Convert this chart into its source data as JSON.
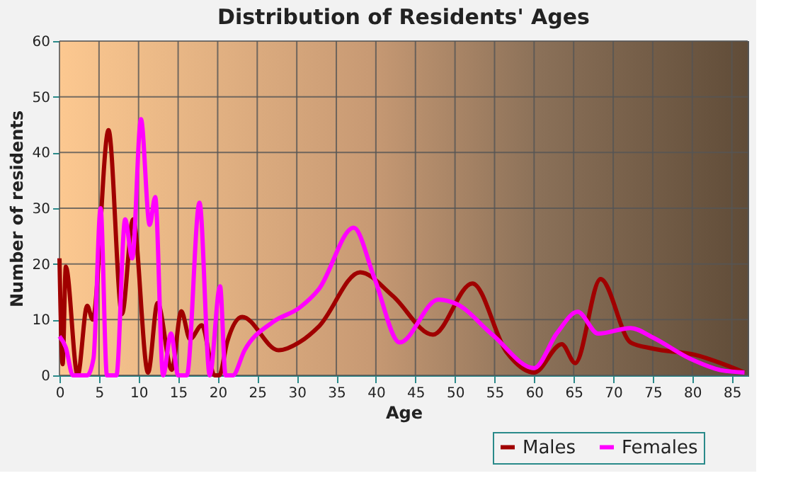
{
  "chart_data": {
    "type": "line",
    "title": "Distribution of Residents' Ages",
    "xlabel": "Age",
    "ylabel": "Number of residents",
    "xlim": [
      0,
      87
    ],
    "xticks": [
      0,
      5,
      10,
      15,
      20,
      25,
      30,
      35,
      40,
      45,
      50,
      55,
      60,
      65,
      70,
      75,
      80,
      85
    ],
    "ylim": [
      0,
      60
    ],
    "yticks": [
      0,
      10,
      20,
      30,
      40,
      50,
      60
    ],
    "grid": true,
    "legend": "bottom",
    "line_style": "solid",
    "series": [
      {
        "name": "Males",
        "color": "#a00000",
        "x": [
          0,
          0.4,
          0.8,
          2.3,
          3.5,
          4.2,
          6.2,
          7.9,
          9.3,
          11.2,
          12.4,
          14.2,
          15.4,
          16.5,
          18,
          19.6,
          20.2,
          21.2,
          23.1,
          27.7,
          30.4,
          32.8,
          38,
          42.1,
          47.2,
          52.2,
          56.5,
          60,
          63.5,
          65.2,
          68.4,
          72.2,
          75,
          80.3,
          86.6
        ],
        "values": [
          21,
          2,
          19.5,
          0,
          12.5,
          10,
          44,
          11,
          28,
          0.5,
          13,
          1,
          11.5,
          6.5,
          9,
          0,
          0,
          6,
          10.5,
          4.5,
          6,
          8.8,
          18.5,
          14.3,
          7.3,
          16.5,
          4.2,
          0.5,
          5.6,
          2.2,
          17.3,
          5.9,
          4.8,
          3.7,
          0.5
        ]
      },
      {
        "name": "Females",
        "color": "#ff00ff",
        "x": [
          0,
          0.8,
          1.7,
          3.5,
          4.3,
          5.2,
          6,
          7.2,
          8.3,
          9.2,
          10.3,
          11.4,
          12.1,
          13.1,
          14.1,
          15,
          16.1,
          17.7,
          19,
          20.3,
          21,
          21.9,
          23.4,
          26.9,
          30.4,
          32.8,
          37.2,
          39.8,
          43,
          47.9,
          50.2,
          54.8,
          60,
          62.9,
          65.5,
          68.1,
          72.2,
          75,
          79.7,
          83.7,
          86.6
        ],
        "values": [
          7,
          5,
          0,
          0,
          3,
          30,
          0,
          0,
          28,
          21,
          46,
          27,
          32,
          0,
          7.5,
          0,
          0,
          31,
          0,
          16,
          0,
          0,
          4.5,
          9.5,
          12.2,
          15.5,
          26.5,
          17.5,
          5.9,
          13.6,
          12.8,
          7.2,
          1.3,
          7.6,
          11.4,
          7.5,
          8.5,
          6.8,
          3,
          0.9,
          0.5
        ]
      }
    ]
  }
}
